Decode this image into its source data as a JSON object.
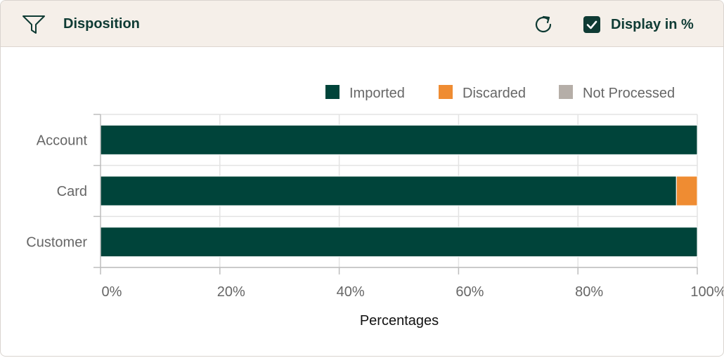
{
  "header": {
    "title": "Disposition",
    "filter_icon": "filter-icon",
    "refresh_icon": "refresh-icon",
    "display_toggle": {
      "label": "Display in %",
      "checked": true
    }
  },
  "colors": {
    "imported": "#00443a",
    "discarded": "#ef8c32",
    "not_processed": "#b5aea8",
    "accent": "#0f3b34"
  },
  "chart_data": {
    "type": "bar",
    "orientation": "horizontal",
    "stacked": true,
    "categories": [
      "Account",
      "Card",
      "Customer"
    ],
    "series": [
      {
        "name": "Imported",
        "values": [
          100,
          96.5,
          100
        ]
      },
      {
        "name": "Discarded",
        "values": [
          0,
          3.5,
          0
        ]
      },
      {
        "name": "Not Processed",
        "values": [
          0,
          0,
          0
        ]
      }
    ],
    "xlabel": "Percentages",
    "ylabel": "",
    "xlim": [
      0,
      100
    ],
    "xticks": [
      "0%",
      "20%",
      "40%",
      "60%",
      "80%",
      "100%"
    ],
    "grid": true,
    "legend_position": "top-right"
  }
}
